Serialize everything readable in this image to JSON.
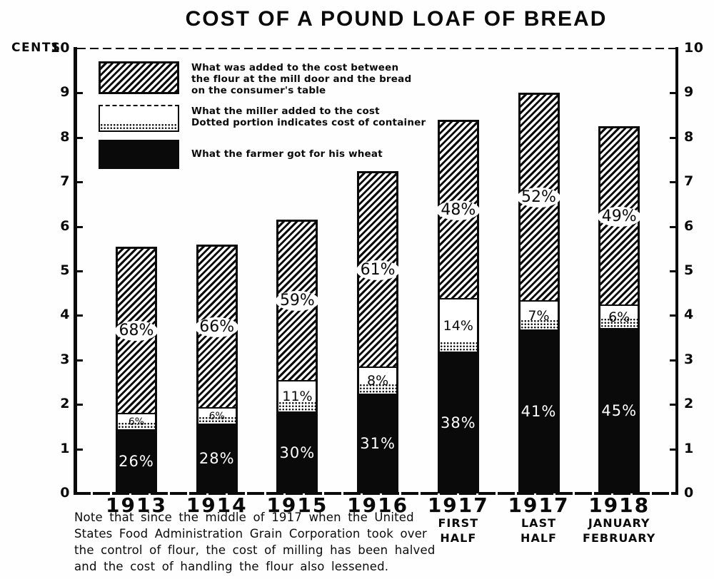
{
  "title": "COST OF A POUND LOAF OF BREAD",
  "y_axis": {
    "unit_label": "CENTS",
    "ticks": [
      10,
      9,
      8,
      7,
      6,
      5,
      4,
      3,
      2,
      1,
      0
    ],
    "min": 0,
    "max": 10
  },
  "legend": {
    "items": [
      {
        "swatch": "hatched",
        "lines": [
          "What was added to the cost between",
          "the flour at the mill door and the bread",
          "on the consumer's table"
        ]
      },
      {
        "swatch": "white-dotted",
        "lines": [
          "What the miller added to the cost",
          "Dotted portion indicates cost of container"
        ]
      },
      {
        "swatch": "black",
        "lines": [
          "What the farmer got for his wheat"
        ]
      }
    ]
  },
  "note_lines": [
    "Note that since the middle of 1917 when the United",
    "States Food Administration Grain Corporation took over",
    "the control of flour, the cost of milling has been halved",
    "and the cost of handling the flour also lessened."
  ],
  "chart_data": {
    "type": "bar",
    "stacked": true,
    "title": "COST OF A POUND LOAF OF BREAD",
    "ylabel": "CENTS",
    "ylim": [
      0,
      10
    ],
    "grid": false,
    "legend_position": "top-left inside plot",
    "categories": [
      {
        "id": "1913",
        "year": "1913",
        "sub": []
      },
      {
        "id": "1914",
        "year": "1914",
        "sub": []
      },
      {
        "id": "1915",
        "year": "1915",
        "sub": []
      },
      {
        "id": "1916",
        "year": "1916",
        "sub": []
      },
      {
        "id": "1917-first-half",
        "year": "1917",
        "sub": [
          "FIRST",
          "HALF"
        ]
      },
      {
        "id": "1917-last-half",
        "year": "1917",
        "sub": [
          "LAST",
          "HALF"
        ]
      },
      {
        "id": "1918-jan-feb",
        "year": "1918",
        "sub": [
          "JANUARY",
          "FEBRUARY"
        ]
      }
    ],
    "totals_cents": [
      5.55,
      5.6,
      6.15,
      7.25,
      8.4,
      9.0,
      8.25
    ],
    "series": [
      {
        "name": "farmer",
        "legend": "What the farmer got for his wheat",
        "style": "black",
        "pct": [
          26,
          28,
          30,
          31,
          38,
          41,
          45
        ]
      },
      {
        "name": "miller",
        "legend": "What the miller added to the cost (dotted portion indicates cost of container)",
        "style": "white-dotted",
        "pct": [
          6,
          6,
          11,
          8,
          14,
          7,
          6
        ]
      },
      {
        "name": "added-cost",
        "legend": "What was added to the cost between the flour at the mill door and the bread on the consumer's table",
        "style": "hatched",
        "pct": [
          68,
          66,
          59,
          61,
          48,
          52,
          49
        ]
      }
    ]
  }
}
